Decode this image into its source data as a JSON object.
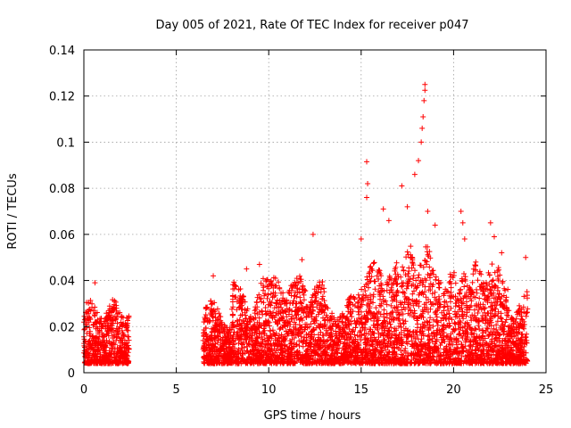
{
  "chart_data": {
    "type": "scatter",
    "title": "Day 005 of 2021, Rate Of TEC Index for receiver p047",
    "xlabel": "GPS time / hours",
    "ylabel": "ROTI / TECUs",
    "xlim": [
      0,
      25
    ],
    "ylim": [
      0,
      0.14
    ],
    "xticks": [
      0,
      5,
      10,
      15,
      20,
      25
    ],
    "yticks": [
      0,
      0.02,
      0.04,
      0.06,
      0.08,
      0.1,
      0.12,
      0.14
    ],
    "xtick_labels": [
      "0",
      "5",
      "10",
      "15",
      "20",
      "25"
    ],
    "ytick_labels": [
      "0",
      "0.02",
      "0.04",
      "0.06",
      "0.08",
      "0.1",
      "0.12",
      "0.14"
    ],
    "grid": true,
    "marker": "+",
    "color": "#ff0000",
    "series": [
      {
        "name": "ROTI",
        "segments": [
          [
            0.0,
            2.45
          ],
          [
            6.45,
            24.0
          ]
        ],
        "notable_points": [
          {
            "x": 0.6,
            "y": 0.039
          },
          {
            "x": 7.0,
            "y": 0.042
          },
          {
            "x": 8.8,
            "y": 0.045
          },
          {
            "x": 9.5,
            "y": 0.047
          },
          {
            "x": 11.8,
            "y": 0.049
          },
          {
            "x": 12.4,
            "y": 0.06
          },
          {
            "x": 15.0,
            "y": 0.058
          },
          {
            "x": 15.3,
            "y": 0.0915
          },
          {
            "x": 15.35,
            "y": 0.082
          },
          {
            "x": 15.3,
            "y": 0.076
          },
          {
            "x": 16.2,
            "y": 0.071
          },
          {
            "x": 16.5,
            "y": 0.066
          },
          {
            "x": 17.2,
            "y": 0.081
          },
          {
            "x": 17.5,
            "y": 0.072
          },
          {
            "x": 17.9,
            "y": 0.086
          },
          {
            "x": 18.1,
            "y": 0.092
          },
          {
            "x": 18.25,
            "y": 0.1
          },
          {
            "x": 18.3,
            "y": 0.106
          },
          {
            "x": 18.35,
            "y": 0.111
          },
          {
            "x": 18.4,
            "y": 0.118
          },
          {
            "x": 18.45,
            "y": 0.1225
          },
          {
            "x": 18.45,
            "y": 0.125
          },
          {
            "x": 18.6,
            "y": 0.07
          },
          {
            "x": 19.0,
            "y": 0.064
          },
          {
            "x": 20.4,
            "y": 0.07
          },
          {
            "x": 20.5,
            "y": 0.065
          },
          {
            "x": 20.6,
            "y": 0.058
          },
          {
            "x": 21.2,
            "y": 0.048
          },
          {
            "x": 22.0,
            "y": 0.065
          },
          {
            "x": 22.2,
            "y": 0.059
          },
          {
            "x": 22.6,
            "y": 0.052
          },
          {
            "x": 23.9,
            "y": 0.05
          }
        ]
      }
    ]
  }
}
